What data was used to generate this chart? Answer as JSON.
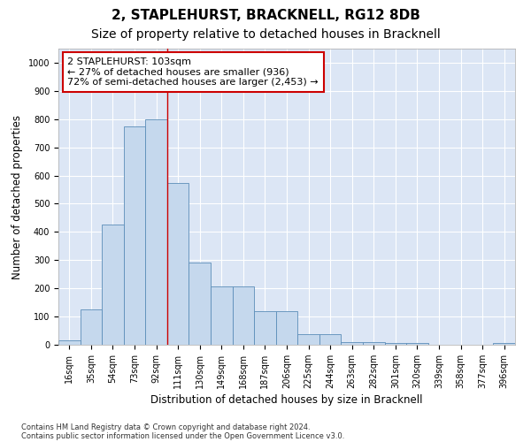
{
  "title": "2, STAPLEHURST, BRACKNELL, RG12 8DB",
  "subtitle": "Size of property relative to detached houses in Bracknell",
  "xlabel": "Distribution of detached houses by size in Bracknell",
  "ylabel": "Number of detached properties",
  "categories": [
    "16sqm",
    "35sqm",
    "54sqm",
    "73sqm",
    "92sqm",
    "111sqm",
    "130sqm",
    "149sqm",
    "168sqm",
    "187sqm",
    "206sqm",
    "225sqm",
    "244sqm",
    "263sqm",
    "282sqm",
    "301sqm",
    "320sqm",
    "339sqm",
    "358sqm",
    "377sqm",
    "396sqm"
  ],
  "values": [
    15,
    125,
    425,
    775,
    800,
    575,
    290,
    207,
    207,
    120,
    120,
    37,
    37,
    10,
    10,
    5,
    5,
    0,
    0,
    0,
    5
  ],
  "bar_color": "#c5d8ed",
  "bar_edge_color": "#5b8db8",
  "background_color": "#dce6f5",
  "grid_color": "#ffffff",
  "annotation_text": "2 STAPLEHURST: 103sqm\n← 27% of detached houses are smaller (936)\n72% of semi-detached houses are larger (2,453) →",
  "annotation_box_color": "#ffffff",
  "annotation_box_edge_color": "#cc0000",
  "vline_color": "#cc0000",
  "ylim": [
    0,
    1050
  ],
  "yticks": [
    0,
    100,
    200,
    300,
    400,
    500,
    600,
    700,
    800,
    900,
    1000
  ],
  "footnote1": "Contains HM Land Registry data © Crown copyright and database right 2024.",
  "footnote2": "Contains public sector information licensed under the Open Government Licence v3.0.",
  "title_fontsize": 11,
  "subtitle_fontsize": 10,
  "tick_fontsize": 7,
  "ylabel_fontsize": 8.5,
  "xlabel_fontsize": 8.5,
  "annotation_fontsize": 8,
  "footnote_fontsize": 6
}
